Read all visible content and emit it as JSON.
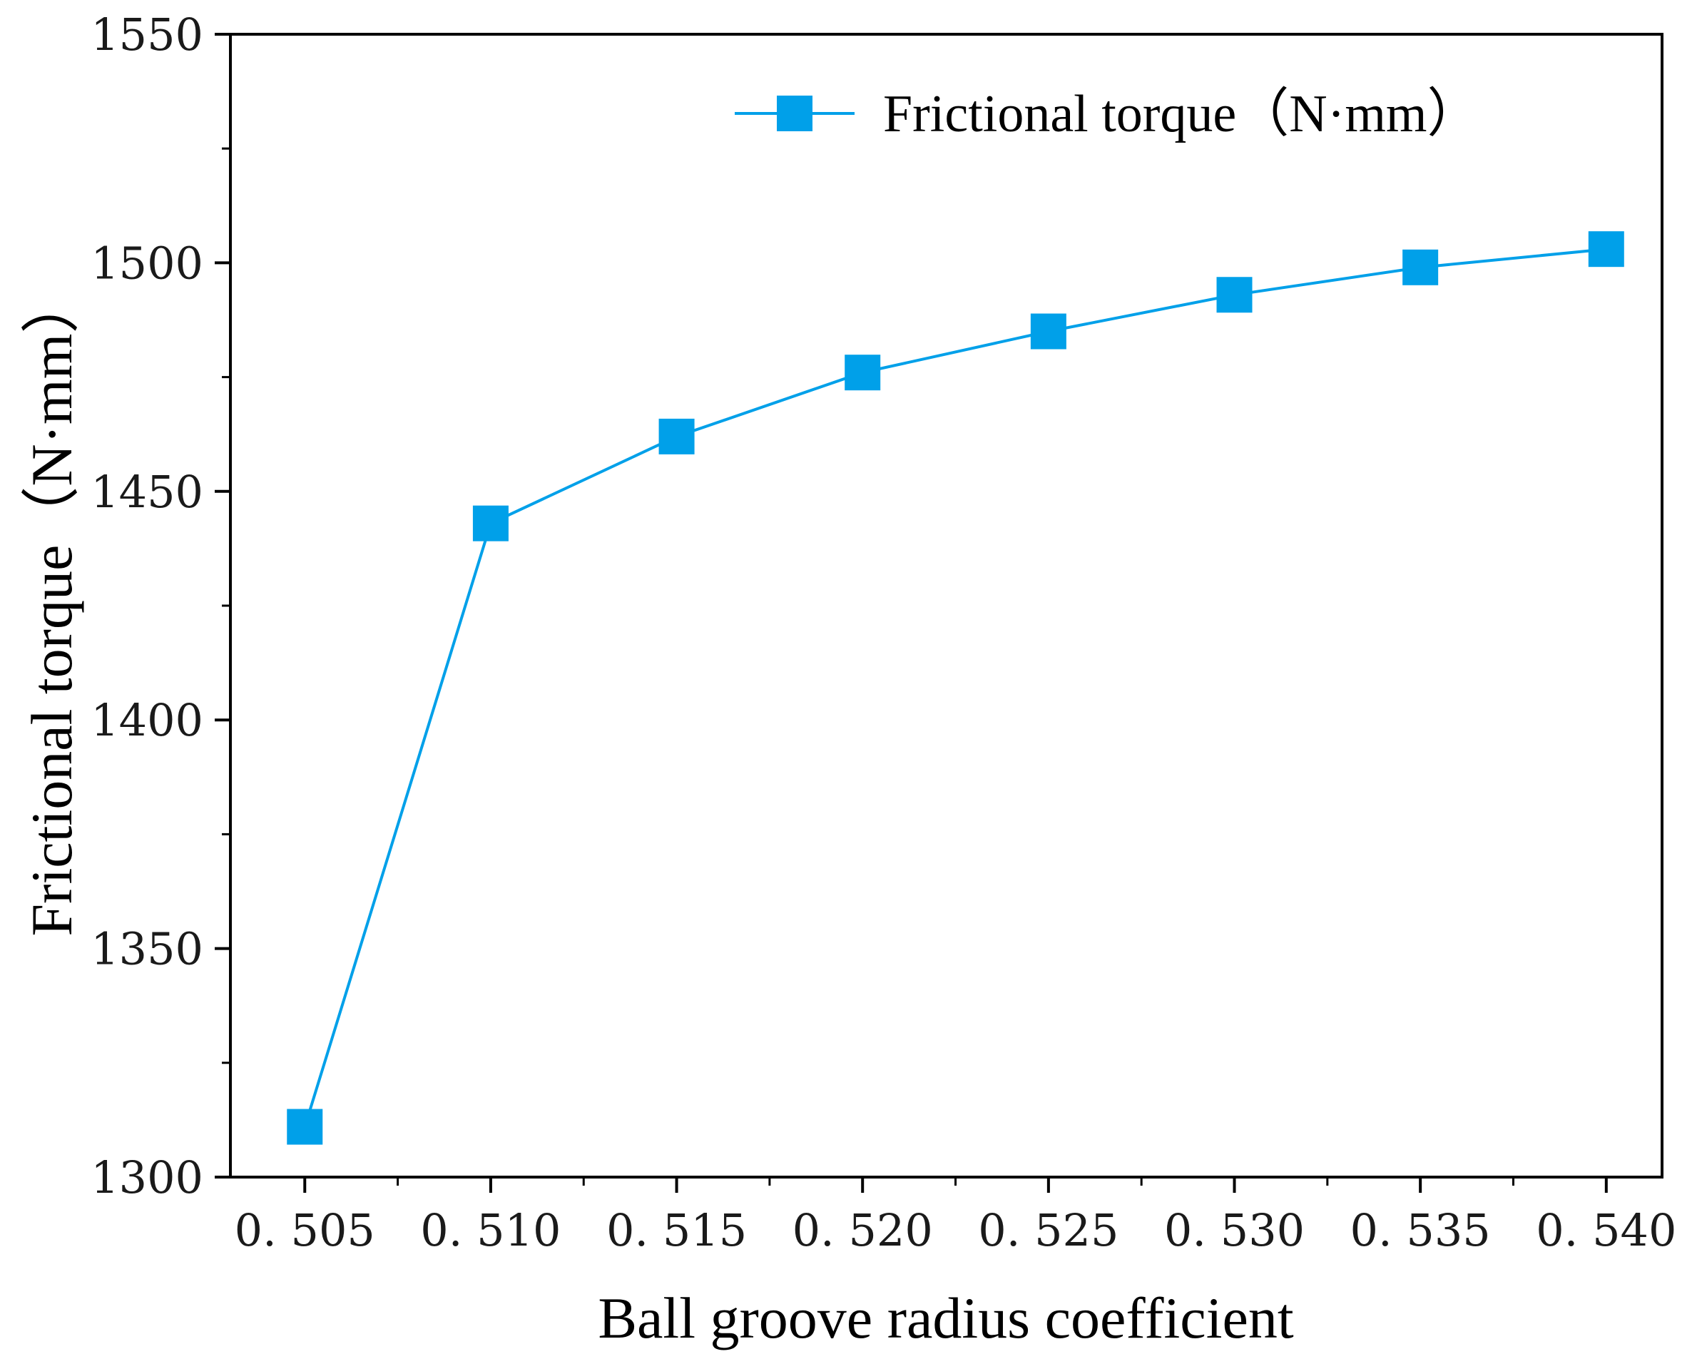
{
  "chart_data": {
    "type": "line",
    "title": "",
    "xlabel": "Ball groove radius coefficient",
    "ylabel": "Frictional torque（N·mm）",
    "xlim": [
      0.503,
      0.5415
    ],
    "ylim": [
      1300,
      1550
    ],
    "x_ticks": [
      0.505,
      0.51,
      0.515,
      0.52,
      0.525,
      0.53,
      0.535,
      0.54
    ],
    "x_tick_labels": [
      "0. 505",
      "0. 510",
      "0. 515",
      "0. 520",
      "0. 525",
      "0. 530",
      "0. 535",
      "0. 540"
    ],
    "x_minor_ticks": [
      0.5075,
      0.5125,
      0.5175,
      0.5225,
      0.5275,
      0.5325,
      0.5375
    ],
    "y_ticks": [
      1300,
      1350,
      1400,
      1450,
      1500,
      1550
    ],
    "y_tick_labels": [
      "1300",
      "1350",
      "1400",
      "1450",
      "1500",
      "1550"
    ],
    "y_minor_ticks": [
      1325,
      1375,
      1425,
      1475,
      1525
    ],
    "grid": false,
    "legend_position": "top-right",
    "series": [
      {
        "name": "Frictional torque（N·mm）",
        "color": "#00a0e9",
        "marker": "square",
        "x": [
          0.505,
          0.51,
          0.515,
          0.52,
          0.525,
          0.53,
          0.535,
          0.54
        ],
        "y": [
          1311,
          1443,
          1462,
          1476,
          1485,
          1493,
          1499,
          1503
        ]
      }
    ]
  }
}
